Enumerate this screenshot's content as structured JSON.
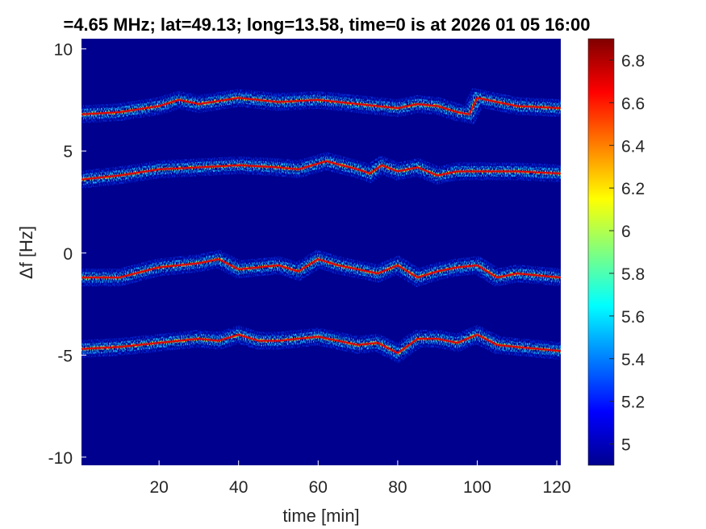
{
  "chart_data": {
    "type": "heatmap",
    "title": "=4.65 MHz;  lat=49.13; long=13.58, time=0 is at 2026 01 05 16:00",
    "xlabel": "time [min]",
    "ylabel": "Δf [Hz]",
    "xlim": [
      0.5,
      121
    ],
    "ylim": [
      -10.4,
      10.5
    ],
    "x_ticks": [
      20,
      40,
      60,
      80,
      100,
      120
    ],
    "x_tick_labels": [
      "20",
      "40",
      "60",
      "80",
      "100",
      "120"
    ],
    "y_ticks": [
      -10,
      -5,
      0,
      5,
      10
    ],
    "y_tick_labels": [
      "-10",
      "-5",
      "0",
      "5",
      "10"
    ],
    "colorbar": {
      "colormap": "jet",
      "clim": [
        4.9,
        6.9
      ],
      "ticks": [
        5,
        5.2,
        5.4,
        5.6,
        5.8,
        6,
        6.2,
        6.4,
        6.6,
        6.8
      ],
      "tick_labels": [
        "5",
        "5.2",
        "5.4",
        "5.6",
        "5.8",
        "6",
        "6.2",
        "6.4",
        "6.6",
        "6.8"
      ]
    },
    "background_color": "#00008f",
    "series": [
      {
        "x": [
          0.5,
          10,
          20,
          25,
          30,
          40,
          50,
          60,
          70,
          80,
          85,
          90,
          95,
          98,
          100,
          105,
          110,
          121
        ],
        "y": [
          6.8,
          6.9,
          7.2,
          7.5,
          7.3,
          7.6,
          7.4,
          7.5,
          7.3,
          7.1,
          7.3,
          7.2,
          6.9,
          6.8,
          7.6,
          7.4,
          7.2,
          7.1
        ]
      },
      {
        "x": [
          0.5,
          10,
          20,
          30,
          40,
          50,
          55,
          62,
          70,
          73,
          76,
          80,
          85,
          90,
          95,
          100,
          110,
          121
        ],
        "y": [
          3.6,
          3.8,
          4.1,
          4.2,
          4.3,
          4.2,
          4.1,
          4.5,
          4.1,
          3.9,
          4.3,
          4.0,
          4.2,
          3.8,
          4.0,
          4.0,
          4.0,
          3.9
        ]
      },
      {
        "x": [
          0.5,
          10,
          20,
          30,
          35,
          40,
          50,
          55,
          60,
          65,
          70,
          75,
          80,
          85,
          90,
          95,
          100,
          105,
          110,
          121
        ],
        "y": [
          -1.2,
          -1.2,
          -0.7,
          -0.5,
          -0.3,
          -0.8,
          -0.6,
          -0.9,
          -0.3,
          -0.6,
          -0.8,
          -1.0,
          -0.6,
          -1.2,
          -0.9,
          -0.7,
          -0.6,
          -1.2,
          -1.0,
          -1.2
        ]
      },
      {
        "x": [
          0.5,
          10,
          20,
          30,
          35,
          40,
          45,
          50,
          60,
          65,
          70,
          75,
          80,
          85,
          90,
          95,
          100,
          105,
          110,
          121
        ],
        "y": [
          -4.7,
          -4.6,
          -4.4,
          -4.2,
          -4.3,
          -4.0,
          -4.3,
          -4.3,
          -4.1,
          -4.3,
          -4.5,
          -4.4,
          -4.9,
          -4.2,
          -4.2,
          -4.4,
          -4.0,
          -4.5,
          -4.6,
          -4.8
        ]
      }
    ]
  }
}
